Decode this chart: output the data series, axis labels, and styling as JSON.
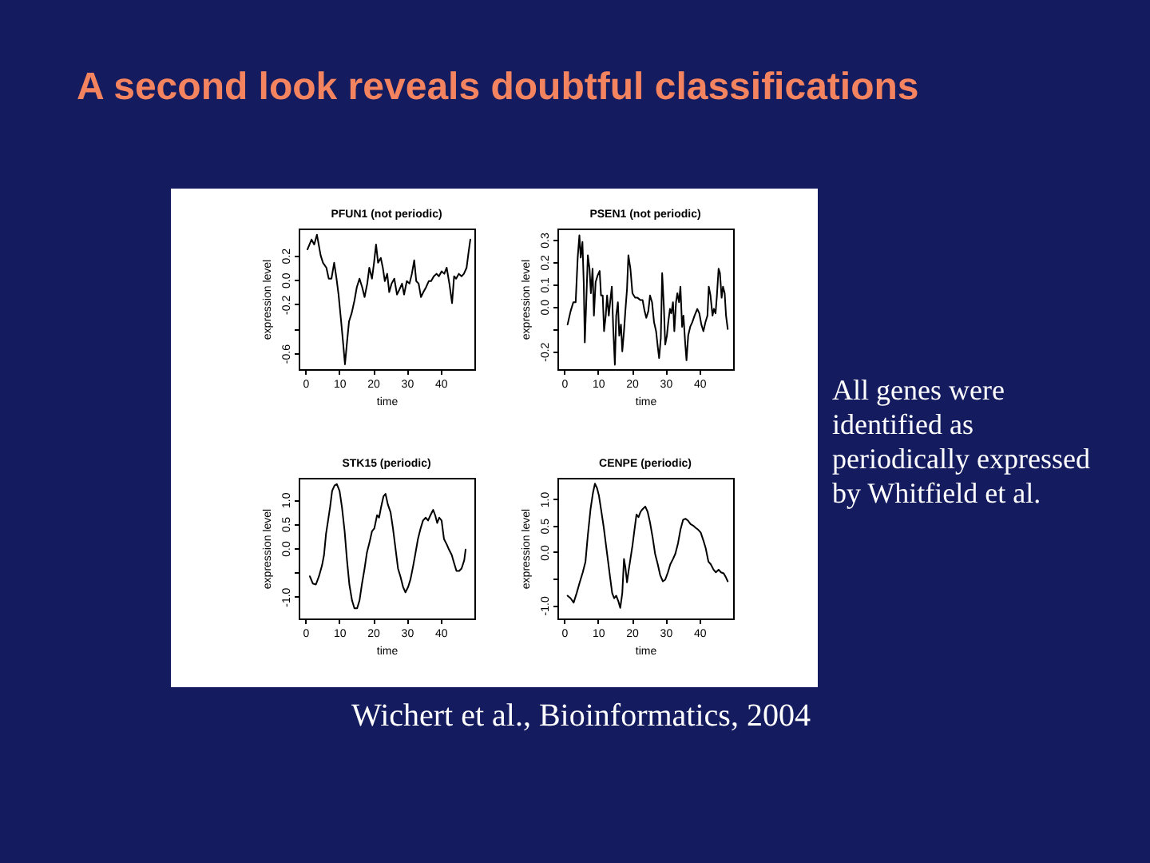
{
  "chart_data": [
    {
      "type": "other",
      "title": "A second look reveals doubtful classifications",
      "annotations": [
        "All genes were identified as periodically expressed by Whitfield et al.",
        "Wichert et al., Bioinformatics, 2004"
      ]
    },
    {
      "type": "line",
      "title": "PFUN1 (not periodic)",
      "xlabel": "time",
      "ylabel": "expression level",
      "xlim": [
        -2,
        50
      ],
      "xticks": [
        0,
        10,
        20,
        30,
        40
      ],
      "ylim": [
        -0.73,
        0.42
      ],
      "yticks": [
        -0.6,
        {
          "value": -0.4,
          "label": null
        },
        -0.2,
        {
          "value": 0,
          "label": "0.0"
        },
        0.2
      ],
      "x": [
        0.6,
        1.8,
        2.6,
        3.4,
        4.5,
        5.2,
        6.2,
        6.9,
        7.7,
        8.5,
        9.2,
        9.8,
        10.5,
        11.2,
        11.7,
        12.3,
        12.9,
        13.7,
        14.5,
        15.2,
        16.0,
        16.8,
        17.5,
        18.3,
        18.9,
        19.7,
        20.3,
        20.9,
        21.5,
        22.3,
        22.9,
        23.5,
        24.2,
        24.8,
        25.5,
        26.3,
        27.1,
        27.8,
        28.6,
        29.2,
        30.0,
        30.8,
        31.5,
        32.2,
        32.8,
        33.5,
        34.2,
        34.9,
        35.7,
        36.5,
        37.2,
        38.0,
        38.8,
        39.5,
        40.3,
        41.1,
        41.8,
        42.6,
        43.4,
        44.0,
        44.6,
        45.4,
        46.2,
        46.9,
        47.7,
        48.3,
        48.8
      ],
      "series": [
        {
          "color": "#000000",
          "values": [
            0.25,
            0.33,
            0.29,
            0.37,
            0.2,
            0.14,
            0.1,
            0.01,
            0.01,
            0.14,
            0.01,
            -0.12,
            -0.32,
            -0.53,
            -0.69,
            -0.51,
            -0.34,
            -0.27,
            -0.17,
            -0.06,
            0.01,
            -0.06,
            -0.14,
            -0.03,
            0.1,
            0.01,
            0.14,
            0.29,
            0.14,
            0.18,
            0.1,
            -0.01,
            0.05,
            -0.1,
            -0.03,
            0.01,
            -0.12,
            -0.08,
            -0.03,
            -0.12,
            -0.01,
            -0.03,
            0.05,
            0.16,
            -0.01,
            -0.03,
            -0.14,
            -0.1,
            -0.06,
            -0.01,
            -0.01,
            0.03,
            0.05,
            0.03,
            0.07,
            0.05,
            0.1,
            -0.03,
            -0.19,
            0.03,
            0.01,
            0.05,
            0.03,
            0.05,
            0.1,
            0.23,
            0.33
          ]
        }
      ]
    },
    {
      "type": "line",
      "title": "PSEN1 (not periodic)",
      "xlabel": "time",
      "ylabel": "expression level",
      "xlim": [
        -2,
        50
      ],
      "xticks": [
        0,
        10,
        20,
        30,
        40
      ],
      "ylim": [
        -0.28,
        0.35
      ],
      "yticks": [
        -0.2,
        {
          "value": -0.1,
          "label": null
        },
        {
          "value": 0,
          "label": "0.0"
        },
        0.1,
        0.2,
        0.3
      ],
      "x": [
        1.0,
        1.9,
        2.7,
        3.4,
        4.0,
        4.5,
        4.9,
        5.4,
        5.8,
        6.1,
        6.6,
        7.0,
        7.5,
        7.9,
        8.4,
        8.8,
        9.3,
        9.9,
        10.5,
        10.9,
        11.4,
        11.8,
        12.3,
        12.7,
        13.2,
        13.6,
        14.1,
        14.5,
        15.0,
        15.4,
        15.9,
        16.3,
        16.8,
        17.2,
        17.7,
        18.1,
        18.6,
        19.0,
        19.6,
        20.2,
        21.0,
        21.7,
        22.5,
        23.2,
        23.8,
        24.3,
        24.9,
        25.4,
        26.0,
        26.6,
        27.2,
        27.7,
        28.1,
        28.6,
        29.0,
        29.5,
        29.9,
        30.4,
        30.8,
        31.3,
        31.7,
        32.2,
        32.6,
        33.1,
        33.5,
        34.0,
        34.4,
        34.9,
        35.3,
        35.8,
        36.2,
        36.7,
        37.3,
        37.9,
        38.6,
        39.4,
        40.0,
        40.6,
        41.2,
        41.8,
        42.4,
        42.8,
        43.3,
        43.9,
        44.3,
        44.8,
        45.2,
        45.7,
        46.1,
        46.6,
        47.0,
        47.5,
        47.9,
        48.4
      ],
      "series": [
        {
          "color": "#000000",
          "values": [
            -0.08,
            -0.02,
            0.02,
            0.02,
            0.22,
            0.32,
            0.22,
            0.29,
            0.1,
            -0.16,
            0.05,
            0.23,
            0.17,
            0.06,
            0.17,
            -0.04,
            0.11,
            0.14,
            0.16,
            0.05,
            0.05,
            -0.11,
            -0.04,
            0.05,
            -0.04,
            0.02,
            0.09,
            -0.09,
            -0.26,
            -0.04,
            0.02,
            -0.13,
            -0.08,
            -0.2,
            -0.11,
            -0.02,
            0.08,
            0.23,
            0.17,
            0.06,
            0.04,
            0.04,
            0.03,
            0.03,
            -0.02,
            -0.05,
            -0.02,
            0.05,
            0.02,
            -0.07,
            -0.11,
            -0.18,
            -0.23,
            -0.14,
            0.15,
            0.0,
            -0.17,
            -0.13,
            -0.07,
            -0.01,
            -0.03,
            0.02,
            -0.11,
            0.02,
            0.06,
            0.02,
            0.09,
            -0.09,
            -0.04,
            -0.16,
            -0.24,
            -0.13,
            -0.09,
            -0.07,
            -0.04,
            -0.01,
            -0.03,
            -0.08,
            -0.11,
            -0.07,
            -0.04,
            0.09,
            0.05,
            -0.04,
            -0.01,
            -0.03,
            0.05,
            0.17,
            0.15,
            0.04,
            0.09,
            0.06,
            -0.04,
            -0.1
          ]
        }
      ]
    },
    {
      "type": "line",
      "title": "STK15 (periodic)",
      "xlabel": "time",
      "ylabel": "expression level",
      "xlim": [
        -2,
        50
      ],
      "xticks": [
        0,
        10,
        20,
        30,
        40
      ],
      "ylim": [
        -1.45,
        1.45
      ],
      "yticks": [
        {
          "value": -1,
          "label": "-1.0"
        },
        {
          "value": -0.5,
          "label": null
        },
        {
          "value": 0,
          "label": "0.0"
        },
        0.5,
        {
          "value": 1,
          "label": "1.0"
        }
      ],
      "x": [
        1.3,
        2.2,
        3.1,
        4.0,
        4.9,
        5.5,
        6.1,
        6.7,
        7.3,
        7.9,
        8.6,
        9.3,
        10.1,
        10.8,
        11.6,
        12.3,
        13.0,
        13.8,
        14.5,
        15.3,
        16.0,
        16.7,
        17.5,
        18.2,
        19.0,
        19.7,
        20.4,
        21.2,
        21.8,
        22.4,
        23.1,
        23.7,
        24.4,
        25.2,
        25.9,
        26.7,
        27.4,
        28.1,
        28.9,
        29.6,
        30.4,
        31.1,
        31.9,
        32.6,
        33.3,
        34.1,
        34.8,
        35.6,
        36.3,
        37.0,
        37.8,
        38.4,
        39.0,
        39.6,
        40.3,
        41.0,
        41.8,
        42.5,
        43.3,
        44.0,
        44.7,
        45.5,
        46.2,
        47.0,
        47.4
      ],
      "series": [
        {
          "color": "#000000",
          "values": [
            -0.58,
            -0.73,
            -0.75,
            -0.58,
            -0.36,
            -0.14,
            0.3,
            0.57,
            0.85,
            1.18,
            1.29,
            1.32,
            1.18,
            0.85,
            0.35,
            -0.25,
            -0.75,
            -1.08,
            -1.24,
            -1.24,
            -1.08,
            -0.75,
            -0.42,
            -0.09,
            0.13,
            0.35,
            0.41,
            0.68,
            0.63,
            0.85,
            1.07,
            1.12,
            0.9,
            0.74,
            0.41,
            -0.03,
            -0.42,
            -0.58,
            -0.8,
            -0.91,
            -0.8,
            -0.64,
            -0.36,
            -0.09,
            0.19,
            0.41,
            0.57,
            0.63,
            0.57,
            0.68,
            0.79,
            0.68,
            0.52,
            0.63,
            0.57,
            0.19,
            0.08,
            -0.03,
            -0.14,
            -0.31,
            -0.47,
            -0.47,
            -0.42,
            -0.25,
            -0.03
          ]
        }
      ]
    },
    {
      "type": "line",
      "title": "CENPE (periodic)",
      "xlabel": "time",
      "ylabel": "expression level",
      "xlim": [
        -2,
        50
      ],
      "xticks": [
        0,
        10,
        20,
        30,
        40
      ],
      "ylim": [
        -1.25,
        1.4
      ],
      "yticks": [
        {
          "value": -1,
          "label": "-1.0"
        },
        {
          "value": -0.5,
          "label": null
        },
        {
          "value": 0,
          "label": "0.0"
        },
        0.5,
        {
          "value": 1,
          "label": "1.0"
        }
      ],
      "x": [
        1.0,
        1.9,
        2.8,
        3.7,
        4.6,
        5.5,
        6.3,
        7.0,
        7.8,
        8.5,
        9.1,
        9.7,
        10.3,
        10.9,
        11.7,
        12.4,
        13.0,
        13.6,
        14.2,
        14.8,
        15.4,
        16.0,
        16.6,
        17.2,
        17.7,
        18.1,
        18.6,
        19.0,
        19.6,
        20.2,
        20.8,
        21.4,
        22.0,
        22.6,
        23.2,
        24.0,
        24.7,
        25.4,
        26.2,
        26.9,
        27.7,
        28.4,
        29.2,
        29.9,
        30.7,
        31.4,
        32.2,
        32.9,
        33.7,
        34.4,
        35.2,
        35.9,
        36.7,
        37.4,
        38.2,
        38.9,
        39.7,
        40.4,
        41.2,
        41.9,
        42.7,
        43.4,
        44.2,
        44.9,
        45.7,
        46.4,
        47.2,
        47.9,
        48.4
      ],
      "series": [
        {
          "color": "#000000",
          "values": [
            -0.82,
            -0.87,
            -0.95,
            -0.77,
            -0.57,
            -0.38,
            -0.18,
            0.32,
            0.81,
            1.11,
            1.29,
            1.21,
            1.06,
            0.81,
            0.47,
            0.12,
            -0.18,
            -0.48,
            -0.77,
            -0.87,
            -0.82,
            -0.92,
            -1.05,
            -0.77,
            -0.13,
            -0.28,
            -0.57,
            -0.38,
            -0.13,
            0.12,
            0.42,
            0.71,
            0.66,
            0.76,
            0.81,
            0.86,
            0.76,
            0.56,
            0.27,
            -0.03,
            -0.23,
            -0.43,
            -0.55,
            -0.52,
            -0.38,
            -0.23,
            -0.13,
            -0.03,
            0.17,
            0.42,
            0.61,
            0.63,
            0.59,
            0.53,
            0.5,
            0.46,
            0.42,
            0.37,
            0.22,
            0.07,
            -0.18,
            -0.23,
            -0.33,
            -0.38,
            -0.33,
            -0.38,
            -0.4,
            -0.48,
            -0.55
          ]
        }
      ]
    }
  ]
}
